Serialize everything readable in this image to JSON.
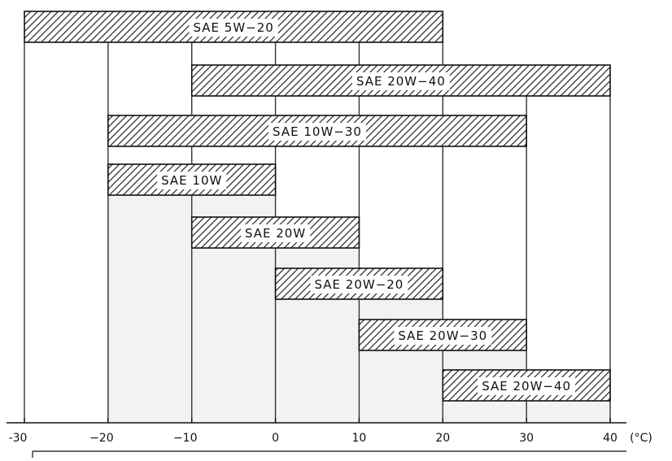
{
  "chart_data": {
    "type": "bar",
    "orientation": "horizontal-range",
    "title": "",
    "xlabel": "",
    "unit": "(°C)",
    "xlim": [
      -30,
      40
    ],
    "x_ticks": [
      -30,
      -20,
      -10,
      0,
      10,
      20,
      30,
      40
    ],
    "x_tick_labels": [
      "-30",
      "−20",
      "−10",
      "0",
      "10",
      "20",
      "30",
      "40"
    ],
    "grid": "vertical lines at ticks",
    "series": [
      {
        "name": "SAE 5W−20",
        "min": -30,
        "max": 20
      },
      {
        "name": "SAE 20W−40",
        "min": -10,
        "max": 40
      },
      {
        "name": "SAE 10W−30",
        "min": -20,
        "max": 30
      },
      {
        "name": "SAE 10W",
        "min": -20,
        "max": 0
      },
      {
        "name": "SAE 20W",
        "min": -10,
        "max": 10
      },
      {
        "name": "SAE 20W−20",
        "min": 0,
        "max": 20
      },
      {
        "name": "SAE 20W−30",
        "min": 10,
        "max": 30
      },
      {
        "name": "SAE 20W−40",
        "min": 20,
        "max": 40
      }
    ],
    "colors": {
      "bar_fill": "#ffffff",
      "hatch": "#222222",
      "bar_stroke": "#111111",
      "grid": "#333333",
      "shade": "#f2f2f2"
    }
  }
}
